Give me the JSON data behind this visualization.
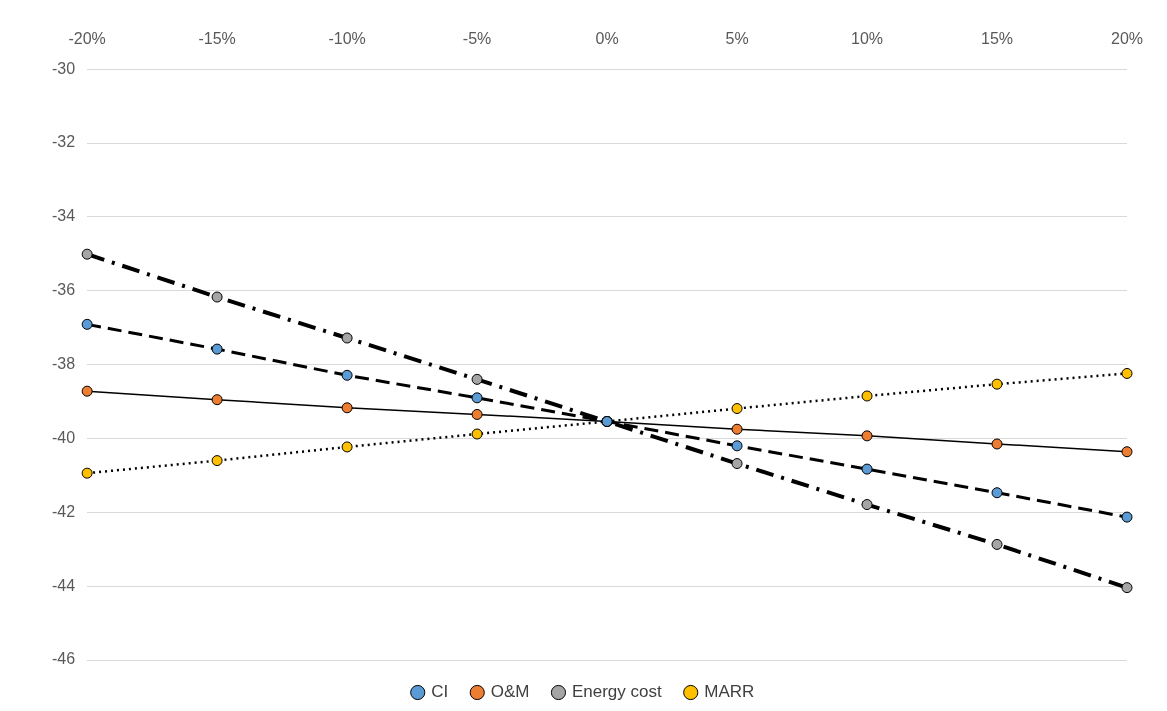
{
  "chart_data": {
    "type": "line",
    "categories": [
      "-20%",
      "-15%",
      "-10%",
      "-5%",
      "0%",
      "5%",
      "10%",
      "15%",
      "20%"
    ],
    "series": [
      {
        "name": "CI",
        "color": "#5b9bd5",
        "line_style": "dashed",
        "values": [
          -36.91,
          -37.58,
          -38.29,
          -38.9,
          -39.54,
          -40.2,
          -40.83,
          -41.47,
          -42.13
        ]
      },
      {
        "name": "O&M",
        "color": "#ed7d31",
        "line_style": "solid",
        "values": [
          -38.72,
          -38.95,
          -39.17,
          -39.35,
          -39.54,
          -39.75,
          -39.93,
          -40.15,
          -40.36
        ]
      },
      {
        "name": "Energy cost",
        "color": "#a5a5a5",
        "line_style": "dashdot",
        "values": [
          -35.01,
          -36.17,
          -37.28,
          -38.4,
          -39.54,
          -40.68,
          -41.79,
          -42.87,
          -44.04
        ]
      },
      {
        "name": "MARR",
        "color": "#ffc000",
        "line_style": "dotted",
        "values": [
          -40.94,
          -40.6,
          -40.23,
          -39.88,
          -39.54,
          -39.19,
          -38.85,
          -38.53,
          -38.24
        ]
      }
    ],
    "ylim": [
      -46,
      -30
    ],
    "yticks": [
      -46,
      -44,
      -42,
      -40,
      -38,
      -36,
      -34,
      -32,
      -30
    ],
    "grid": "y",
    "legend": "bottom",
    "marker": "circle"
  }
}
